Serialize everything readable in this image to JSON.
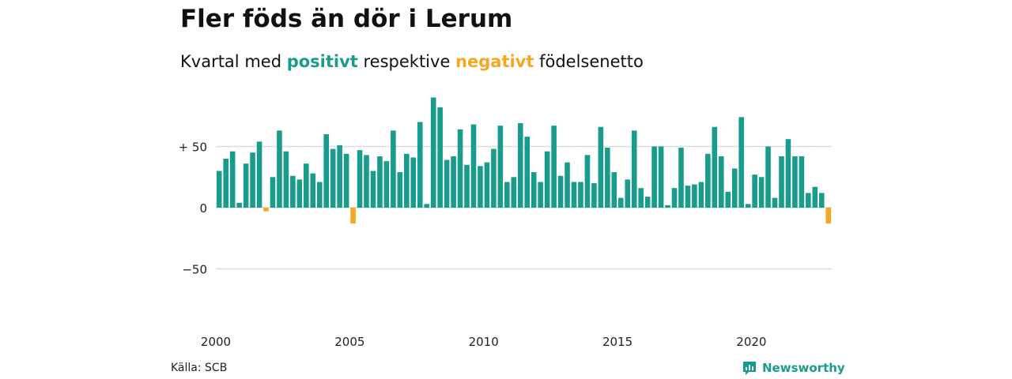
{
  "title": "Fler föds än dör i Lerum",
  "subtitle": {
    "prefix": "Kvartal med ",
    "positive_word": "positivt",
    "middle": " respektive ",
    "negative_word": "negativt",
    "suffix": " födelsenetto"
  },
  "colors": {
    "positive": "#1a9c8c",
    "negative": "#f5a623",
    "gridline": "#dddddd",
    "brand": "#1a9c8c"
  },
  "source": "Källa: SCB",
  "brand": {
    "name": "Newsworthy",
    "icon": "newsworthy-logo-icon"
  },
  "chart_data": {
    "type": "bar",
    "title": "Fler föds än dör i Lerum",
    "subtitle": "Kvartal med positivt respektive negativt födelsenetto",
    "x_start_quarter": "2000 Q1",
    "x_ticks": [
      "2000",
      "2005",
      "2010",
      "2015",
      "2020"
    ],
    "y_ticks": [
      {
        "value": 50,
        "label": "+ 50"
      },
      {
        "value": 0,
        "label": "0"
      },
      {
        "value": -50,
        "label": "−50"
      }
    ],
    "ylim": [
      -65,
      95
    ],
    "grid": true,
    "values": [
      30,
      40,
      46,
      4,
      36,
      45,
      54,
      -3,
      25,
      63,
      46,
      26,
      23,
      36,
      28,
      21,
      60,
      48,
      51,
      44,
      -13,
      47,
      43,
      30,
      42,
      38,
      63,
      29,
      44,
      41,
      70,
      3,
      90,
      82,
      39,
      42,
      64,
      35,
      68,
      34,
      37,
      48,
      67,
      21,
      25,
      69,
      58,
      29,
      21,
      46,
      67,
      26,
      37,
      21,
      21,
      43,
      20,
      66,
      49,
      29,
      8,
      23,
      63,
      16,
      9,
      50,
      50,
      2,
      16,
      49,
      18,
      19,
      21,
      44,
      66,
      42,
      13,
      32,
      74,
      3,
      27,
      25,
      50,
      8,
      42,
      56,
      42,
      42,
      12,
      17,
      12,
      -13
    ]
  }
}
